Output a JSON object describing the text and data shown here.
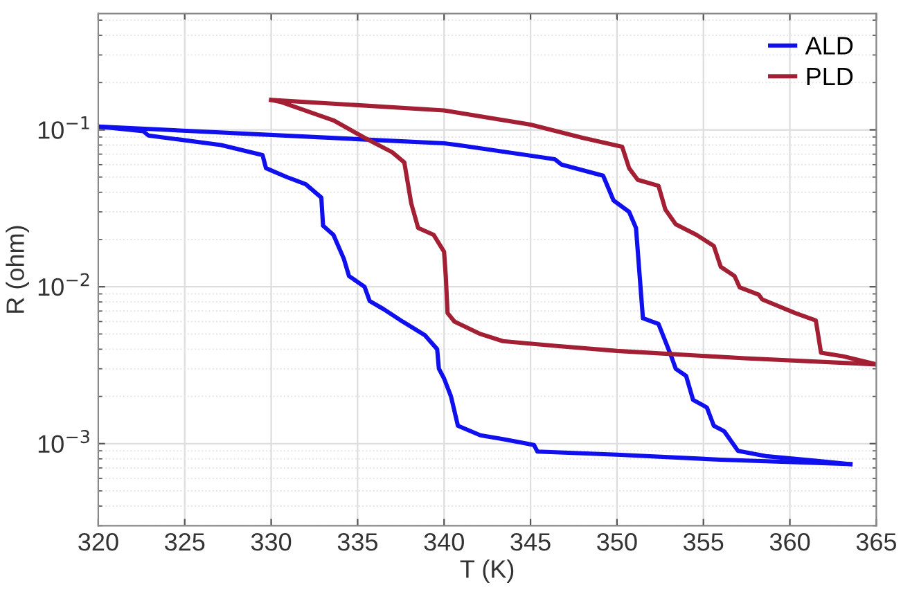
{
  "chart_data": {
    "type": "line",
    "xlabel": "T (K)",
    "ylabel": "R (ohm)",
    "log": "y",
    "grid": true,
    "legend": "top right",
    "line_style": "solid",
    "marker": "none",
    "xlim": [
      320,
      365
    ],
    "xticks": [
      320,
      325,
      330,
      335,
      340,
      345,
      350,
      355,
      360,
      365
    ],
    "ylim": [
      0.0003,
      0.55
    ],
    "yticks": [
      {
        "value": 0.001,
        "label": "10$^{−3}$"
      },
      {
        "value": 0.01,
        "label": "10$^{−2}$"
      },
      {
        "value": 0.1,
        "label": "10$^{−1}$"
      }
    ],
    "series": [
      {
        "name": "ALD",
        "color": "#1010ee",
        "x": [
          320,
          340,
          340.8,
          346.4,
          346.8,
          349.2,
          349.8,
          350.7,
          351.1,
          351.5,
          352.4,
          353.1,
          353.4,
          354.0,
          354.4,
          355.2,
          355.6,
          356.2,
          357.0,
          358.7,
          361.4,
          363.5
        ],
        "values": [
          0.105,
          0.082,
          0.08,
          0.065,
          0.06,
          0.051,
          0.0355,
          0.03,
          0.0237,
          0.0063,
          0.0058,
          0.0037,
          0.003,
          0.0027,
          0.0019,
          0.0017,
          0.0013,
          0.0012,
          0.0009,
          0.00083,
          0.00078,
          0.00074
        ]
      },
      {
        "color": "#1010ee",
        "x": [
          320,
          322.6,
          322.9,
          327.1,
          329.5,
          329.7,
          330.9,
          332.0,
          332.9,
          333.0,
          333.6,
          334.2,
          334.5,
          335.4,
          335.7,
          336.5,
          337.6,
          338.9,
          339.6,
          339.7,
          340.0,
          340.4,
          340.8,
          342.1,
          343.4,
          345.2,
          345.4,
          350.0,
          356.0,
          363.5
        ],
        "values": [
          0.105,
          0.098,
          0.092,
          0.08,
          0.069,
          0.057,
          0.05,
          0.045,
          0.037,
          0.0245,
          0.0214,
          0.0151,
          0.0117,
          0.01,
          0.0081,
          0.0072,
          0.006,
          0.0049,
          0.004,
          0.003,
          0.0026,
          0.002,
          0.0013,
          0.00113,
          0.00107,
          0.00098,
          0.00089,
          0.00085,
          0.00079,
          0.00074
        ]
      },
      {
        "name": "PLD",
        "color": "#a31f34",
        "x": [
          330,
          340,
          345,
          348,
          350.3,
          350.7,
          351.2,
          352.4,
          352.8,
          353.4,
          354.6,
          355.6,
          356.0,
          356.8,
          357.1,
          358.2,
          358.4,
          360.3,
          361.5,
          361.8,
          363.1,
          365
        ],
        "values": [
          0.155,
          0.133,
          0.108,
          0.089,
          0.078,
          0.057,
          0.048,
          0.044,
          0.031,
          0.025,
          0.0214,
          0.0182,
          0.0134,
          0.0117,
          0.0099,
          0.0089,
          0.0083,
          0.0068,
          0.0061,
          0.0038,
          0.0036,
          0.0032
        ]
      },
      {
        "color": "#a31f34",
        "x": [
          330,
          330.6,
          333.6,
          335.4,
          337.0,
          337.7,
          338.1,
          338.5,
          339.4,
          340.0,
          340.1,
          340.2,
          340.6,
          342.1,
          343.4,
          346.4,
          350.0,
          357.4,
          365
        ],
        "values": [
          0.155,
          0.15,
          0.115,
          0.089,
          0.072,
          0.062,
          0.034,
          0.0237,
          0.0214,
          0.0167,
          0.0116,
          0.0068,
          0.006,
          0.005,
          0.0045,
          0.0042,
          0.0039,
          0.0035,
          0.0032
        ]
      }
    ]
  }
}
